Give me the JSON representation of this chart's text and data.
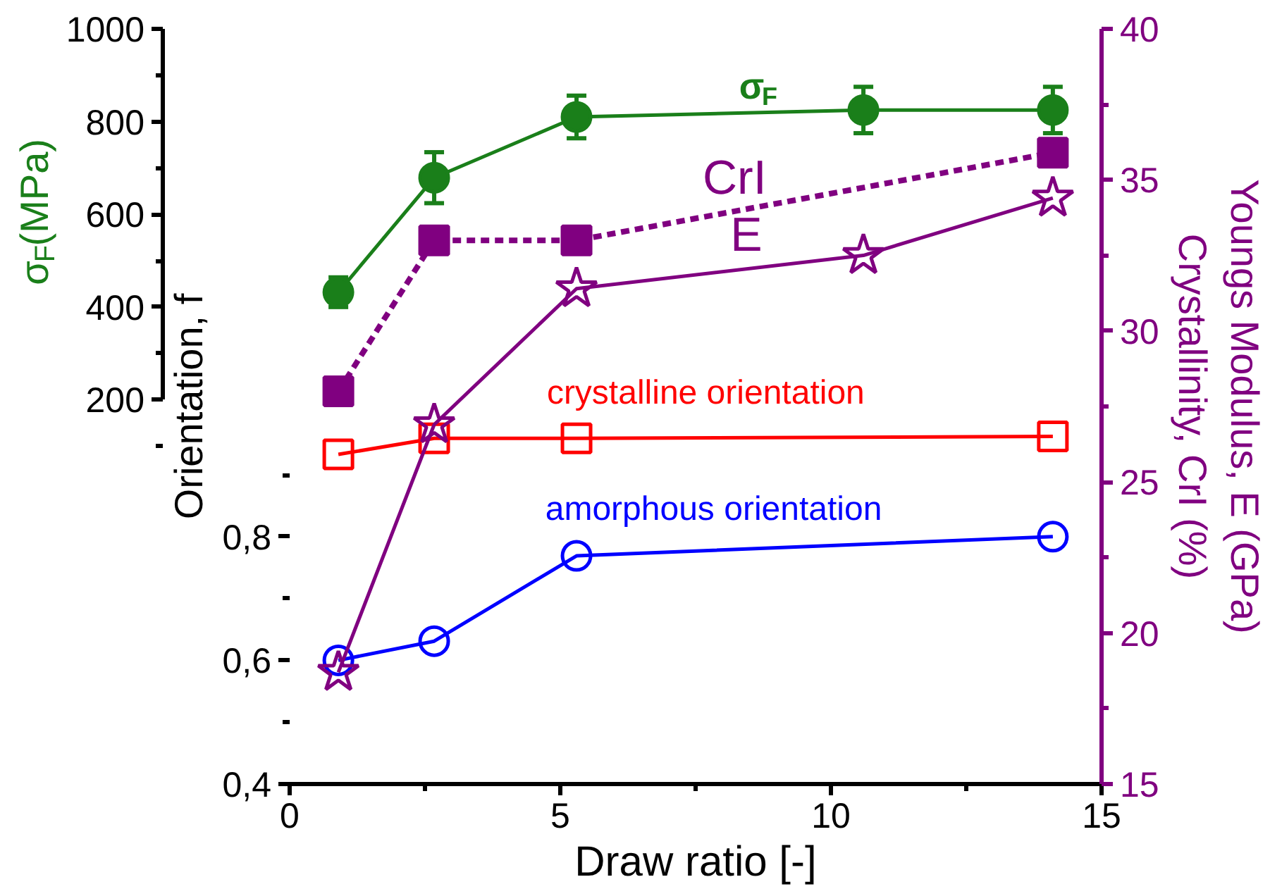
{
  "chart_data": {
    "type": "line",
    "xlabel": "Draw ratio [-]",
    "ylabel": "Orientation, f",
    "y2label": "Youngs Modulus, E (GPa)\nCrystallinity, CrI (%)",
    "y3label": "σ$_{F}$(MPa)",
    "xlim": [
      0,
      15
    ],
    "xticks": [
      0,
      5,
      10,
      15
    ],
    "ylim": [
      0.4,
      1.621
    ],
    "yticks": [
      {
        "value": 0.4,
        "label": "0,4"
      },
      {
        "value": 0.6,
        "label": "0,6"
      },
      {
        "value": 0.8,
        "label": "0,8"
      }
    ],
    "y2lim": [
      15,
      40
    ],
    "y2ticks": [
      15,
      20,
      25,
      30,
      35,
      40
    ],
    "y3lim": [
      -629,
      1000
    ],
    "y3ticks": [
      200,
      400,
      600,
      800,
      1000
    ],
    "grid": false,
    "legend": false,
    "series": [
      {
        "name": "σ$_{F}$",
        "color": "#1a7f1a",
        "axis": "y3",
        "marker": "circle",
        "line_style": "solid",
        "x": [
          0.9,
          2.67,
          5.3,
          10.6,
          14.1
        ],
        "values": [
          432,
          679,
          810,
          825,
          825
        ],
        "errors": [
          32,
          55,
          46,
          50,
          50
        ]
      },
      {
        "name": "CrI",
        "color": "#800080",
        "axis": "y2",
        "marker": "square",
        "line_style": "dashed",
        "x": [
          0.9,
          2.67,
          5.3,
          14.1
        ],
        "values": [
          28.0,
          33.0,
          33.0,
          35.9
        ]
      },
      {
        "name": "E",
        "color": "#800080",
        "axis": "y2",
        "marker": "star",
        "line_style": "solid",
        "x": [
          0.9,
          2.67,
          5.3,
          10.6,
          14.1
        ],
        "values": [
          18.7,
          26.9,
          31.4,
          32.5,
          34.4
        ]
      },
      {
        "name": "crystalline orientation",
        "color": "#ff0000",
        "axis": "y",
        "marker": "square",
        "line_style": "solid",
        "x": [
          0.9,
          2.67,
          5.3,
          14.1
        ],
        "values": [
          0.933,
          0.959,
          0.959,
          0.962
        ]
      },
      {
        "name": "amorphous orientation",
        "color": "#0000ff",
        "axis": "y",
        "marker": "circle",
        "line_style": "solid",
        "x": [
          0.9,
          2.67,
          5.3,
          14.1
        ],
        "values": [
          0.6,
          0.631,
          0.769,
          0.8
        ]
      }
    ]
  }
}
